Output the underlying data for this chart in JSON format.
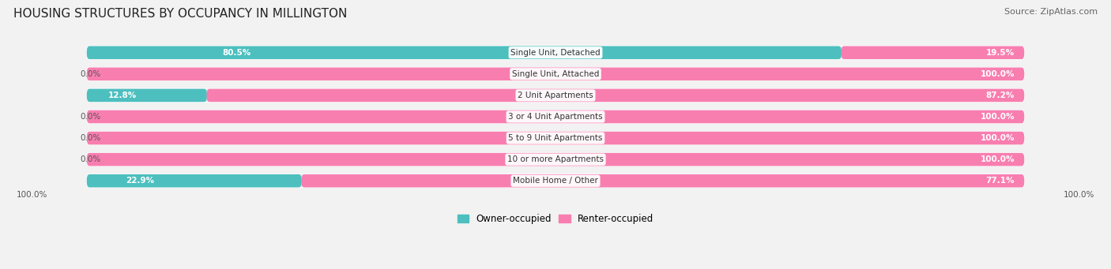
{
  "title": "HOUSING STRUCTURES BY OCCUPANCY IN MILLINGTON",
  "source": "Source: ZipAtlas.com",
  "categories": [
    "Single Unit, Detached",
    "Single Unit, Attached",
    "2 Unit Apartments",
    "3 or 4 Unit Apartments",
    "5 to 9 Unit Apartments",
    "10 or more Apartments",
    "Mobile Home / Other"
  ],
  "owner_pct": [
    80.5,
    0.0,
    12.8,
    0.0,
    0.0,
    0.0,
    22.9
  ],
  "renter_pct": [
    19.5,
    100.0,
    87.2,
    100.0,
    100.0,
    100.0,
    77.1
  ],
  "owner_color": "#4dbfbf",
  "renter_color": "#f87eb0",
  "bg_color": "#f2f2f2",
  "bar_bg_color": "#e2e2e2",
  "title_fontsize": 11,
  "source_fontsize": 8,
  "label_fontsize": 7.5,
  "pct_fontsize": 7.5,
  "legend_fontsize": 8.5,
  "bar_height": 0.58,
  "x_min": -8,
  "x_max": 108,
  "owner_label_color_dark": "#555555",
  "renter_label_color": "#ffffff",
  "cat_label_color": "#333333"
}
